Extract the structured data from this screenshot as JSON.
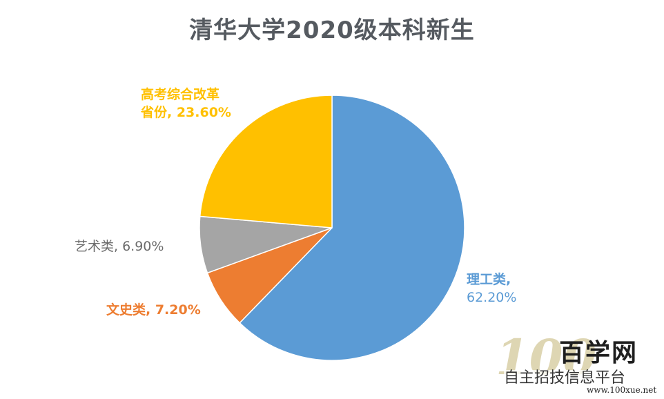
{
  "chart_data": {
    "type": "pie",
    "title": "清华大学2020级本科新生",
    "slices": [
      {
        "label": "理工类",
        "value": 62.2,
        "display": "62.20%",
        "color": "#5B9BD5"
      },
      {
        "label": "文史类",
        "value": 7.2,
        "display": "7.20%",
        "color": "#ED7D31"
      },
      {
        "label": "艺术类",
        "value": 6.9,
        "display": "6.90%",
        "color": "#A5A5A5"
      },
      {
        "label": "高考综合改革省份",
        "value": 23.6,
        "display": "23.60%",
        "color": "#FFC000"
      }
    ],
    "labels": {
      "science": {
        "line1": "理工类,",
        "line2": "62.20%"
      },
      "liberal": {
        "text": "文史类, 7.20%"
      },
      "arts": {
        "text": "艺术类, 6.90%"
      },
      "reform": {
        "line1": "高考综合改革",
        "line2": "省份, 23.60%"
      }
    }
  },
  "watermark": {
    "logo": "100",
    "brand": "百学网",
    "subtitle": "自主招技信息平台",
    "url": "www.100xue.net"
  }
}
